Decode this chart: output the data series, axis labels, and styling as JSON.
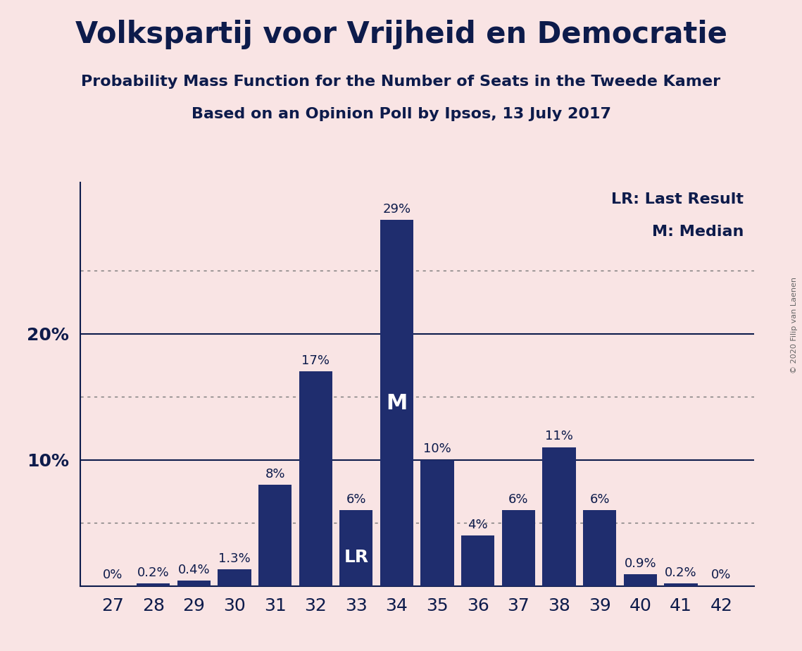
{
  "title": "Volkspartij voor Vrijheid en Democratie",
  "subtitle1": "Probability Mass Function for the Number of Seats in the Tweede Kamer",
  "subtitle2": "Based on an Opinion Poll by Ipsos, 13 July 2017",
  "copyright": "© 2020 Filip van Laenen",
  "seats": [
    27,
    28,
    29,
    30,
    31,
    32,
    33,
    34,
    35,
    36,
    37,
    38,
    39,
    40,
    41,
    42
  ],
  "values": [
    0.0,
    0.2,
    0.4,
    1.3,
    8.0,
    17.0,
    6.0,
    29.0,
    10.0,
    4.0,
    6.0,
    11.0,
    6.0,
    0.9,
    0.2,
    0.0
  ],
  "labels": [
    "0%",
    "0.2%",
    "0.4%",
    "1.3%",
    "8%",
    "17%",
    "6%",
    "29%",
    "10%",
    "4%",
    "6%",
    "11%",
    "6%",
    "0.9%",
    "0.2%",
    "0%"
  ],
  "bar_color": "#1f2d6e",
  "background_color": "#f9e4e4",
  "text_color": "#0d1b4b",
  "last_result_seat": 33,
  "median_seat": 34,
  "solid_gridlines": [
    10,
    20
  ],
  "dotted_gridlines": [
    5,
    15,
    25
  ],
  "ylim": [
    0,
    32
  ],
  "title_fontsize": 30,
  "subtitle_fontsize": 16,
  "label_fontsize": 13,
  "tick_fontsize": 18,
  "legend_fontsize": 16,
  "lr_fontsize": 18,
  "m_fontsize": 22
}
